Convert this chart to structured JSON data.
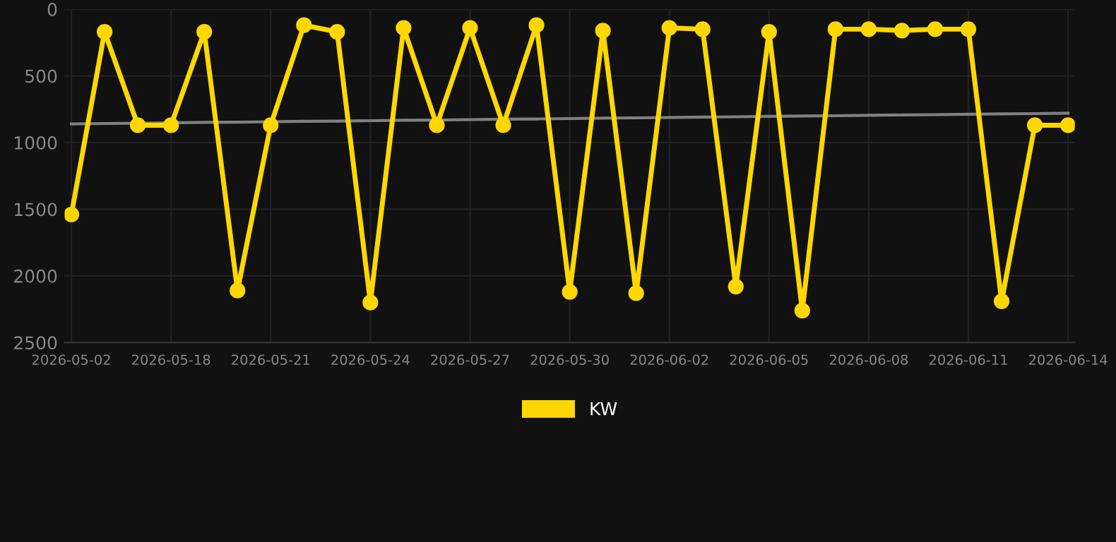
{
  "chart_data": {
    "type": "line",
    "categories": [
      "2026-05-02",
      null,
      null,
      "2026-05-18",
      null,
      null,
      "2026-05-21",
      null,
      null,
      "2026-05-24",
      null,
      null,
      "2026-05-27",
      null,
      null,
      "2026-05-30",
      null,
      null,
      "2026-06-02",
      null,
      null,
      "2026-06-05",
      null,
      null,
      "2026-06-08",
      null,
      null,
      "2026-06-11",
      null,
      null,
      "2026-06-14"
    ],
    "series": [
      {
        "name": "KW",
        "color": "#ffd700",
        "marker": "circle",
        "values": [
          1540,
          170,
          870,
          870,
          170,
          2110,
          870,
          120,
          170,
          2200,
          140,
          870,
          140,
          870,
          120,
          2120,
          160,
          2130,
          140,
          150,
          2080,
          170,
          2260,
          150,
          150,
          160,
          150,
          150,
          2190,
          870,
          870
        ]
      },
      {
        "type": "line",
        "color": "#808080",
        "marker": "none",
        "values": [
          860,
          857,
          855,
          852,
          849,
          847,
          844,
          841,
          839,
          836,
          833,
          831,
          828,
          825,
          823,
          820,
          817,
          815,
          812,
          809,
          807,
          804,
          801,
          799,
          796,
          793,
          791,
          788,
          785,
          783,
          780
        ]
      }
    ],
    "ylim": [
      2500,
      0
    ],
    "yticks": [
      0,
      500,
      1000,
      1500,
      2000,
      2500
    ],
    "grid": true,
    "legend": "bottom",
    "line_style": "solid"
  }
}
